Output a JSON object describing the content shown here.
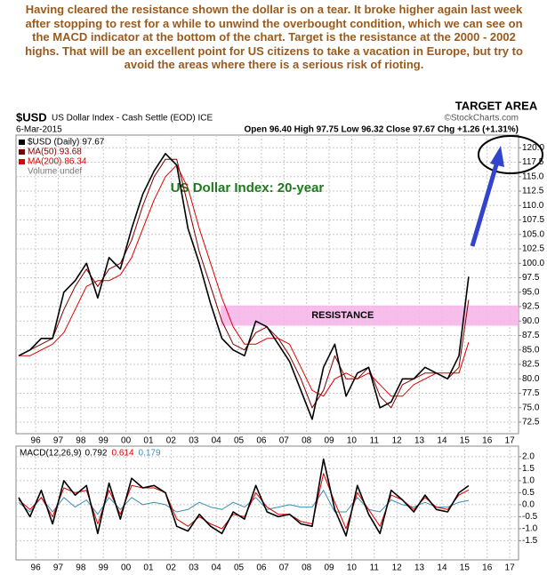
{
  "commentary": "Having cleared the resistance shown the dollar is on a tear. It broke higher again last week after stopping to rest for a while to unwind the overbought condition, which we can see on the MACD indicator at the bottom of the chart. Target is the resistance at the 2000 - 2002 highs. That will be an excellent point for US citizens to take a vacation in Europe, but try to avoid the areas where there is a serious risk of rioting.",
  "chart_data": [
    {
      "type": "line",
      "title": "$USD",
      "subtitle": "US Dollar Index - Cash Settle (EOD) ICE",
      "date": "6-Mar-2015",
      "source": "©StockCharts.com",
      "quote": "Open 96.40  High 97.75  Low 96.32  Close 97.67  Chg +1.26 (+1.31%)",
      "volume_label": "Volume undef",
      "x": [
        1995.25,
        1995.75,
        1996.25,
        1996.75,
        1997.25,
        1997.75,
        1998.25,
        1998.75,
        1999.25,
        1999.75,
        2000.25,
        2000.75,
        2001.25,
        2001.75,
        2002.25,
        2002.75,
        2003.25,
        2003.75,
        2004.25,
        2004.75,
        2005.25,
        2005.75,
        2006.25,
        2006.75,
        2007.25,
        2007.75,
        2008.25,
        2008.75,
        2009.25,
        2009.75,
        2010.25,
        2010.75,
        2011.25,
        2011.75,
        2012.25,
        2012.75,
        2013.25,
        2013.75,
        2014.25,
        2014.75,
        2015.18
      ],
      "series": [
        {
          "name": "$USD (Daily)",
          "color": "#000000",
          "values": [
            84,
            85,
            87,
            87,
            95,
            97,
            100,
            94,
            101,
            99,
            106,
            112,
            116,
            119,
            117,
            106,
            100,
            93,
            87,
            85,
            84,
            90,
            89,
            86,
            83,
            78,
            73,
            82,
            86,
            77,
            81,
            82,
            75,
            76,
            80,
            80,
            82,
            81,
            80,
            84,
            97.67
          ]
        },
        {
          "name": "MA(50)",
          "color": "#800000",
          "values": [
            84,
            85,
            86,
            87,
            92,
            96,
            99,
            96,
            99,
            100,
            104,
            110,
            115,
            118,
            118,
            110,
            102,
            96,
            90,
            86,
            85,
            88,
            89,
            87,
            84,
            80,
            75,
            78,
            84,
            80,
            80,
            82,
            77,
            75,
            79,
            80,
            81,
            81,
            80,
            82,
            93.68
          ]
        },
        {
          "name": "MA(200)",
          "color": "#dd0000",
          "values": [
            84,
            84,
            85,
            86,
            88,
            92,
            96,
            97,
            97,
            98,
            101,
            106,
            111,
            115,
            117,
            113,
            106,
            100,
            94,
            89,
            86,
            86,
            87,
            87,
            86,
            82,
            78,
            77,
            80,
            81,
            80,
            81,
            79,
            77,
            77,
            79,
            80,
            81,
            81,
            81,
            86.34
          ]
        }
      ],
      "xlim": [
        1995.13,
        2017.39
      ],
      "xticks": [
        {
          "value": 1996,
          "label": "96"
        },
        {
          "value": 1997,
          "label": "97"
        },
        {
          "value": 1998,
          "label": "98"
        },
        {
          "value": 1999,
          "label": "99"
        },
        {
          "value": 2000,
          "label": "00"
        },
        {
          "value": 2001,
          "label": "01"
        },
        {
          "value": 2002,
          "label": "02"
        },
        {
          "value": 2003,
          "label": "03"
        },
        {
          "value": 2004,
          "label": "04"
        },
        {
          "value": 2005,
          "label": "05"
        },
        {
          "value": 2006,
          "label": "06"
        },
        {
          "value": 2007,
          "label": "07"
        },
        {
          "value": 2008,
          "label": "08"
        },
        {
          "value": 2009,
          "label": "09"
        },
        {
          "value": 2010,
          "label": "10"
        },
        {
          "value": 2011,
          "label": "11"
        },
        {
          "value": 2012,
          "label": "12"
        },
        {
          "value": 2013,
          "label": "13"
        },
        {
          "value": 2014,
          "label": "14"
        },
        {
          "value": 2015,
          "label": "15"
        },
        {
          "value": 2016,
          "label": "16"
        },
        {
          "value": 2017,
          "label": "17"
        }
      ],
      "ylim": [
        70.5,
        122.2
      ],
      "yticks": [
        {
          "value": 120,
          "label": "120.0"
        },
        {
          "value": 117.5,
          "label": "117.5"
        },
        {
          "value": 115,
          "label": "115.0"
        },
        {
          "value": 112.5,
          "label": "112.5"
        },
        {
          "value": 110,
          "label": "110.0"
        },
        {
          "value": 107.5,
          "label": "107.5"
        },
        {
          "value": 105,
          "label": "105.0"
        },
        {
          "value": 102.5,
          "label": "102.5"
        },
        {
          "value": 100,
          "label": "100.0"
        },
        {
          "value": 97.5,
          "label": "97.5"
        },
        {
          "value": 95,
          "label": "95.0"
        },
        {
          "value": 92.5,
          "label": "92.5"
        },
        {
          "value": 90,
          "label": "90.0"
        },
        {
          "value": 87.5,
          "label": "87.5"
        },
        {
          "value": 85,
          "label": "85.0"
        },
        {
          "value": 82.5,
          "label": "82.5"
        },
        {
          "value": 80,
          "label": "80.0"
        },
        {
          "value": 77.5,
          "label": "77.5"
        },
        {
          "value": 75,
          "label": "75.0"
        },
        {
          "value": 72.5,
          "label": "72.5"
        }
      ],
      "grid": true,
      "annotations": [
        {
          "text": "US Dollar Index: 20-year"
        },
        {
          "text": "RESISTANCE",
          "range": [
            89.2,
            92.7
          ],
          "xstart": 2004.2
        },
        {
          "text": "TARGET AREA"
        }
      ]
    },
    {
      "type": "line",
      "x": [
        1995.25,
        1995.75,
        1996.25,
        1996.75,
        1997.25,
        1997.75,
        1998.25,
        1998.75,
        1999.25,
        1999.75,
        2000.25,
        2000.75,
        2001.25,
        2001.75,
        2002.25,
        2002.75,
        2003.25,
        2003.75,
        2004.25,
        2004.75,
        2005.25,
        2005.75,
        2006.25,
        2006.75,
        2007.25,
        2007.75,
        2008.25,
        2008.75,
        2009.25,
        2009.75,
        2010.25,
        2010.75,
        2011.25,
        2011.75,
        2012.25,
        2012.75,
        2013.25,
        2013.75,
        2014.25,
        2014.75,
        2015.18
      ],
      "series": [
        {
          "name": "MACD(12,26,9)",
          "color": "#000000",
          "values": [
            0.3,
            -0.5,
            0.6,
            -0.8,
            1.0,
            0.4,
            0.8,
            -1.2,
            0.9,
            -0.6,
            1.1,
            0.7,
            0.8,
            0.5,
            -0.9,
            -1.1,
            -0.4,
            -0.9,
            -1.2,
            -0.3,
            -0.6,
            0.8,
            -0.3,
            -0.5,
            -0.4,
            -0.8,
            -0.9,
            1.9,
            -0.2,
            -1.3,
            0.8,
            -0.4,
            -1.2,
            0.6,
            0.2,
            -0.3,
            0.4,
            -0.2,
            -0.3,
            0.5,
            0.792
          ]
        },
        {
          "color": "#dd0000",
          "values": [
            0.2,
            -0.2,
            0.3,
            -0.5,
            0.7,
            0.5,
            0.6,
            -0.8,
            0.6,
            -0.4,
            0.8,
            0.7,
            0.7,
            0.5,
            -0.6,
            -0.9,
            -0.5,
            -0.8,
            -1.0,
            -0.4,
            -0.5,
            0.5,
            -0.1,
            -0.4,
            -0.4,
            -0.7,
            -0.8,
            1.3,
            0.1,
            -1.0,
            0.5,
            -0.2,
            -0.9,
            0.4,
            0.2,
            -0.2,
            0.3,
            -0.1,
            -0.2,
            0.4,
            0.614
          ]
        },
        {
          "color": "#3a8fb0",
          "values": [
            0.1,
            -0.3,
            0.3,
            -0.3,
            0.3,
            -0.1,
            0.2,
            -0.4,
            0.3,
            -0.2,
            0.3,
            0,
            0.1,
            0,
            -0.3,
            -0.2,
            0.1,
            -0.1,
            -0.2,
            0.1,
            -0.1,
            0.3,
            -0.2,
            -0.1,
            0,
            -0.1,
            -0.1,
            0.6,
            -0.3,
            -0.3,
            0.3,
            -0.2,
            -0.3,
            0.2,
            0,
            -0.1,
            0.1,
            -0.1,
            -0.1,
            0.1,
            0.179
          ]
        }
      ],
      "xlim": [
        1995.13,
        2017.39
      ],
      "xticks": [
        {
          "value": 1996,
          "label": "96"
        },
        {
          "value": 1997,
          "label": "97"
        },
        {
          "value": 1998,
          "label": "98"
        },
        {
          "value": 1999,
          "label": "99"
        },
        {
          "value": 2000,
          "label": "00"
        },
        {
          "value": 2001,
          "label": "01"
        },
        {
          "value": 2002,
          "label": "02"
        },
        {
          "value": 2003,
          "label": "03"
        },
        {
          "value": 2004,
          "label": "04"
        },
        {
          "value": 2005,
          "label": "05"
        },
        {
          "value": 2006,
          "label": "06"
        },
        {
          "value": 2007,
          "label": "07"
        },
        {
          "value": 2008,
          "label": "08"
        },
        {
          "value": 2009,
          "label": "09"
        },
        {
          "value": 2010,
          "label": "10"
        },
        {
          "value": 2011,
          "label": "11"
        },
        {
          "value": 2012,
          "label": "12"
        },
        {
          "value": 2013,
          "label": "13"
        },
        {
          "value": 2014,
          "label": "14"
        },
        {
          "value": 2015,
          "label": "15"
        },
        {
          "value": 2016,
          "label": "16"
        },
        {
          "value": 2017,
          "label": "17"
        }
      ],
      "ylim": [
        -2.3,
        2.44
      ],
      "yticks": [
        {
          "value": 2,
          "label": "2.0"
        },
        {
          "value": 1.5,
          "label": "1.5"
        },
        {
          "value": 1,
          "label": "1.0"
        },
        {
          "value": 0.5,
          "label": "0.5"
        },
        {
          "value": 0,
          "label": "0.0"
        },
        {
          "value": -0.5,
          "label": "-0.5"
        },
        {
          "value": -1,
          "label": "-1.0"
        },
        {
          "value": -1.5,
          "label": "-1.5"
        }
      ],
      "grid": true
    }
  ]
}
